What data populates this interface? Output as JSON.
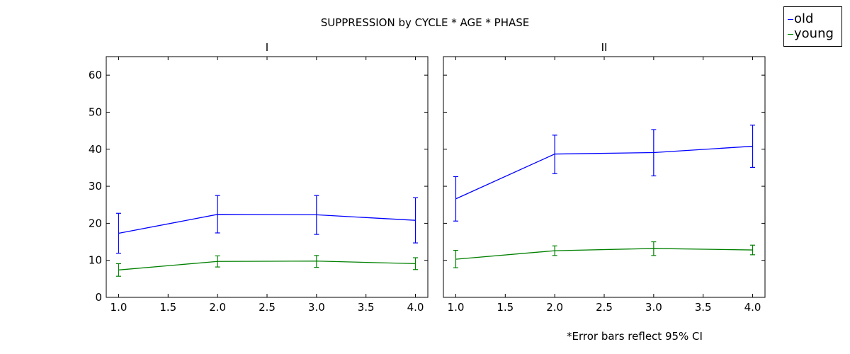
{
  "chart_data": {
    "type": "line",
    "title": "SUPPRESSION by CYCLE * AGE * PHASE",
    "footnote": "*Error bars reflect 95% CI",
    "xlim": [
      0.875,
      4.125
    ],
    "ylim": [
      0,
      65
    ],
    "xticks": [
      "1.0",
      "1.5",
      "2.0",
      "2.5",
      "3.0",
      "3.5",
      "4.0"
    ],
    "xtick_values": [
      1.0,
      1.5,
      2.0,
      2.5,
      3.0,
      3.5,
      4.0
    ],
    "yticks": [
      "0",
      "10",
      "20",
      "30",
      "40",
      "50",
      "60"
    ],
    "ytick_values": [
      0,
      10,
      20,
      30,
      40,
      50,
      60
    ],
    "grid": false,
    "legend_position": "top-right outside",
    "legend": [
      {
        "name": "old",
        "color": "#0000ff"
      },
      {
        "name": "young",
        "color": "#008000"
      }
    ],
    "panels": [
      {
        "title": "I",
        "series": [
          {
            "name": "old",
            "color": "#0000ff",
            "x": [
              1,
              2,
              3,
              4
            ],
            "y": [
              17.3,
              22.4,
              22.3,
              20.8
            ],
            "ci_low": [
              11.9,
              17.4,
              17.0,
              14.7
            ],
            "ci_high": [
              22.7,
              27.5,
              27.5,
              26.9
            ]
          },
          {
            "name": "young",
            "color": "#008000",
            "x": [
              1,
              2,
              3,
              4
            ],
            "y": [
              7.4,
              9.7,
              9.8,
              9.1
            ],
            "ci_low": [
              5.7,
              8.2,
              8.1,
              7.5
            ],
            "ci_high": [
              9.1,
              11.2,
              11.3,
              10.7
            ]
          }
        ]
      },
      {
        "title": "II",
        "series": [
          {
            "name": "old",
            "color": "#0000ff",
            "x": [
              1,
              2,
              3,
              4
            ],
            "y": [
              26.6,
              38.7,
              39.1,
              40.8
            ],
            "ci_low": [
              20.6,
              33.4,
              32.8,
              35.1
            ],
            "ci_high": [
              32.6,
              43.8,
              45.3,
              46.5
            ]
          },
          {
            "name": "young",
            "color": "#008000",
            "x": [
              1,
              2,
              3,
              4
            ],
            "y": [
              10.3,
              12.6,
              13.2,
              12.8
            ],
            "ci_low": [
              8.0,
              11.3,
              11.3,
              11.5
            ],
            "ci_high": [
              12.7,
              13.9,
              15.0,
              14.1
            ]
          }
        ]
      }
    ]
  }
}
